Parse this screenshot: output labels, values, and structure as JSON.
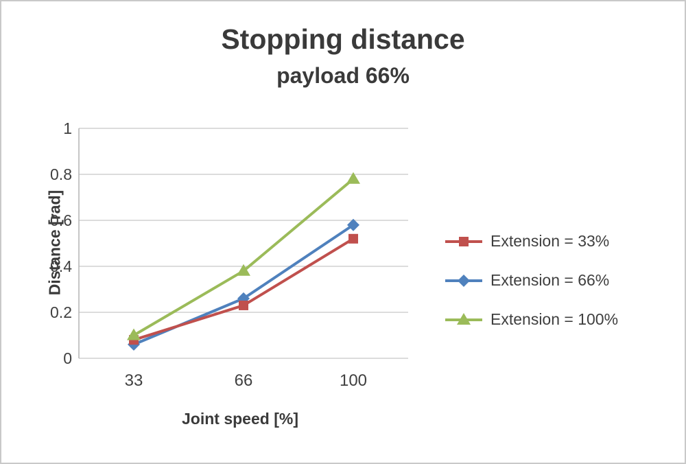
{
  "chart": {
    "title": "Stopping distance",
    "subtitle": "payload 66%"
  },
  "chart_data": {
    "type": "line",
    "categories": [
      "33",
      "66",
      "100"
    ],
    "series": [
      {
        "name": "Extension = 33%",
        "color": "#C0504D",
        "marker": "square",
        "values": [
          0.08,
          0.23,
          0.52
        ]
      },
      {
        "name": "Extension = 66%",
        "color": "#4F81BD",
        "marker": "diamond",
        "values": [
          0.06,
          0.26,
          0.58
        ]
      },
      {
        "name": "Extension = 100%",
        "color": "#9BBB59",
        "marker": "triangle",
        "values": [
          0.1,
          0.38,
          0.78
        ]
      }
    ],
    "xlabel": "Joint speed [%]",
    "ylabel": "Distance [rad]",
    "ylim": [
      0,
      1
    ],
    "ytick_step": 0.2,
    "yticks": [
      "0",
      "0.2",
      "0.4",
      "0.6",
      "0.8",
      "1"
    ],
    "grid": true,
    "legend_position": "right",
    "colors": {
      "gridline": "#c6c6c6",
      "axis": "#b7b7b7",
      "text": "#404040"
    }
  }
}
